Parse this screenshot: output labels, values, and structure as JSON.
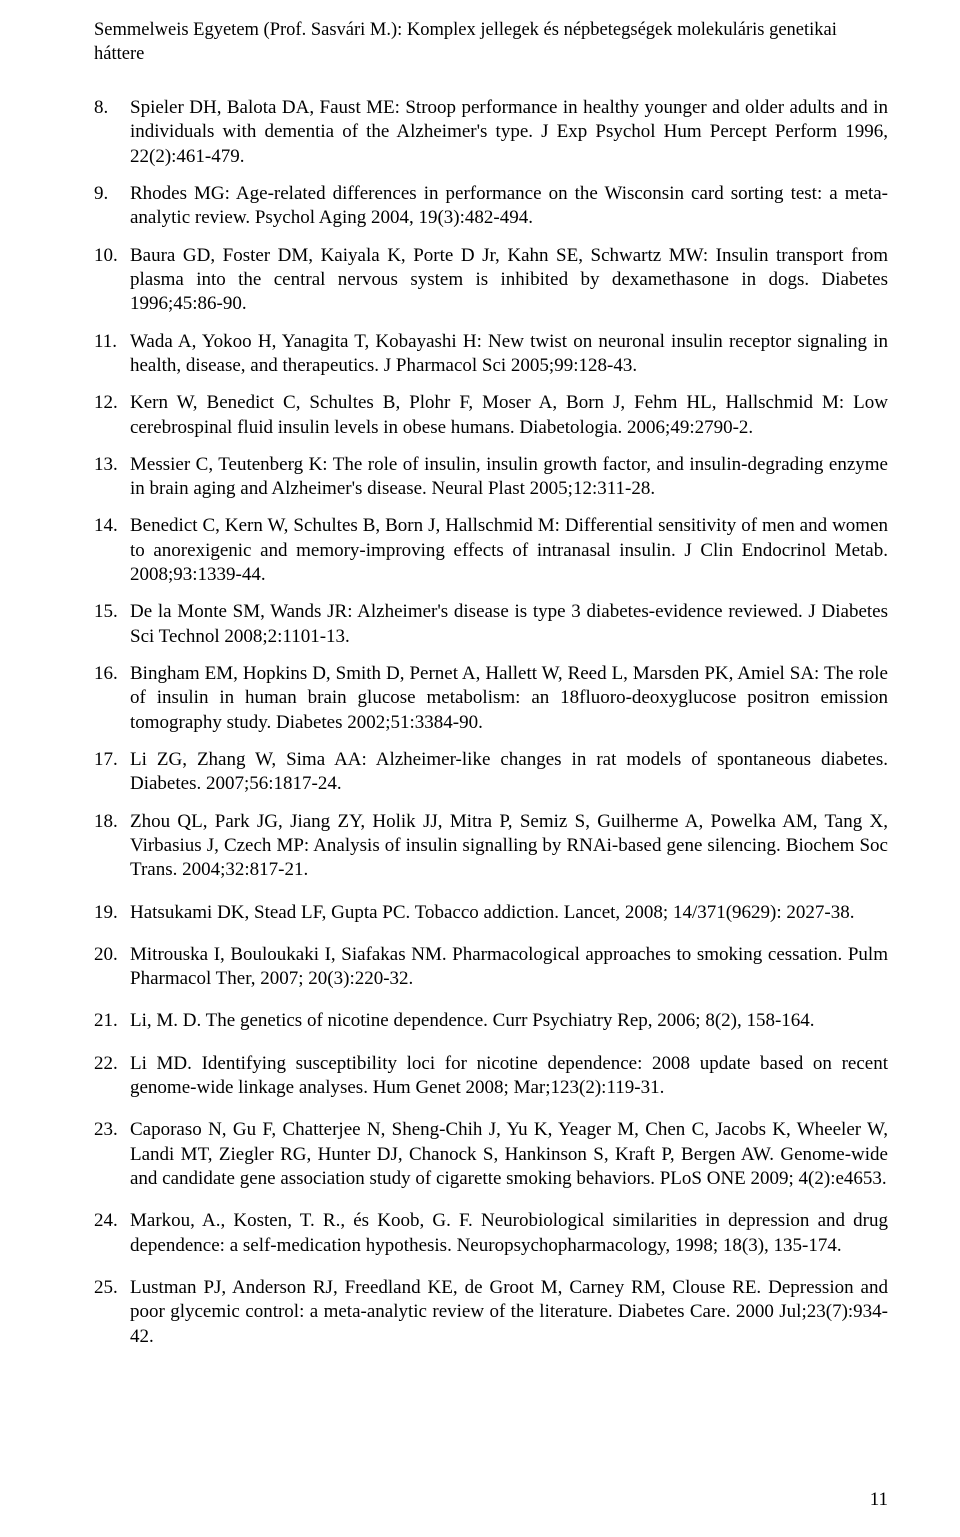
{
  "header": "Semmelweis Egyetem (Prof. Sasvári M.): Komplex jellegek és népbetegségek molekuláris genetikai háttere",
  "page_number": "11",
  "references": [
    {
      "num": "8.",
      "text": "Spieler DH, Balota DA, Faust ME: Stroop performance in healthy younger and older adults and in individuals with dementia of the Alzheimer's type. J Exp Psychol Hum Percept Perform 1996, 22(2):461-479."
    },
    {
      "num": "9.",
      "text": "Rhodes MG: Age-related differences in performance on the Wisconsin card sorting test: a meta-analytic review. Psychol Aging 2004, 19(3):482-494."
    },
    {
      "num": "10.",
      "text": "Baura GD, Foster DM, Kaiyala K, Porte D Jr, Kahn SE, Schwartz MW: Insulin transport from plasma into the central nervous system is inhibited by dexamethasone in dogs. Diabetes 1996;45:86-90."
    },
    {
      "num": "11.",
      "text": "Wada A, Yokoo H, Yanagita T, Kobayashi H: New twist on neuronal insulin receptor signaling in health, disease, and therapeutics. J Pharmacol Sci 2005;99:128-43."
    },
    {
      "num": "12.",
      "text": "Kern W, Benedict C, Schultes B, Plohr F, Moser A, Born J, Fehm HL, Hallschmid M: Low cerebrospinal fluid insulin levels in obese humans. Diabetologia. 2006;49:2790-2."
    },
    {
      "num": "13.",
      "text": "Messier C, Teutenberg K: The role of insulin, insulin growth factor, and insulin-degrading enzyme in brain aging and Alzheimer's disease. Neural Plast 2005;12:311-28."
    },
    {
      "num": "14.",
      "text": "Benedict C, Kern W, Schultes B, Born J, Hallschmid M: Differential sensitivity of men and women to anorexigenic and memory-improving effects of intranasal insulin. J Clin Endocrinol Metab. 2008;93:1339-44."
    },
    {
      "num": "15.",
      "text": "De la Monte SM, Wands JR: Alzheimer's disease is type 3 diabetes-evidence reviewed. J Diabetes Sci Technol 2008;2:1101-13."
    },
    {
      "num": "16.",
      "text": "Bingham EM, Hopkins D, Smith D, Pernet A, Hallett W, Reed L, Marsden PK, Amiel SA: The role of insulin in human brain glucose metabolism: an 18fluoro-deoxyglucose positron emission tomography study. Diabetes 2002;51:3384-90."
    },
    {
      "num": "17.",
      "text": "Li ZG, Zhang W, Sima AA: Alzheimer-like changes in rat models of spontaneous diabetes. Diabetes. 2007;56:1817-24."
    },
    {
      "num": "18.",
      "text": "Zhou QL, Park JG, Jiang ZY, Holik JJ, Mitra P, Semiz S, Guilherme A, Powelka AM, Tang X, Virbasius J, Czech MP: Analysis of insulin signalling by RNAi-based gene silencing. Biochem Soc Trans. 2004;32:817-21."
    },
    {
      "num": "19.",
      "text": "Hatsukami DK, Stead LF, Gupta PC. Tobacco addiction. Lancet, 2008; 14/371(9629): 2027-38."
    },
    {
      "num": "20.",
      "text": "Mitrouska I, Bouloukaki I, Siafakas NM. Pharmacological approaches to smoking cessation. Pulm Pharmacol Ther, 2007; 20(3):220-32."
    },
    {
      "num": "21.",
      "text": "Li, M. D. The genetics of nicotine dependence. Curr Psychiatry Rep, 2006; 8(2), 158-164."
    },
    {
      "num": "22.",
      "text": "Li MD. Identifying susceptibility loci for nicotine dependence: 2008 update based on recent genome-wide linkage analyses. Hum Genet 2008; Mar;123(2):119-31."
    },
    {
      "num": "23.",
      "text": "Caporaso N, Gu F, Chatterjee N, Sheng-Chih J, Yu K, Yeager M, Chen C, Jacobs K, Wheeler W, Landi MT, Ziegler RG, Hunter DJ, Chanock S, Hankinson S, Kraft P, Bergen AW. Genome-wide and candidate gene association study of cigarette smoking behaviors. PLoS ONE 2009; 4(2):e4653."
    },
    {
      "num": "24.",
      "text": "Markou, A., Kosten, T. R., és Koob, G. F. Neurobiological similarities in depression and drug dependence: a self-medication hypothesis. Neuropsychopharmacology, 1998; 18(3), 135-174."
    },
    {
      "num": "25.",
      "text": "Lustman PJ, Anderson RJ, Freedland KE, de Groot M, Carney RM, Clouse RE. Depression and poor glycemic control: a meta-analytic review of the literature. Diabetes Care. 2000 Jul;23(7):934-42."
    }
  ]
}
